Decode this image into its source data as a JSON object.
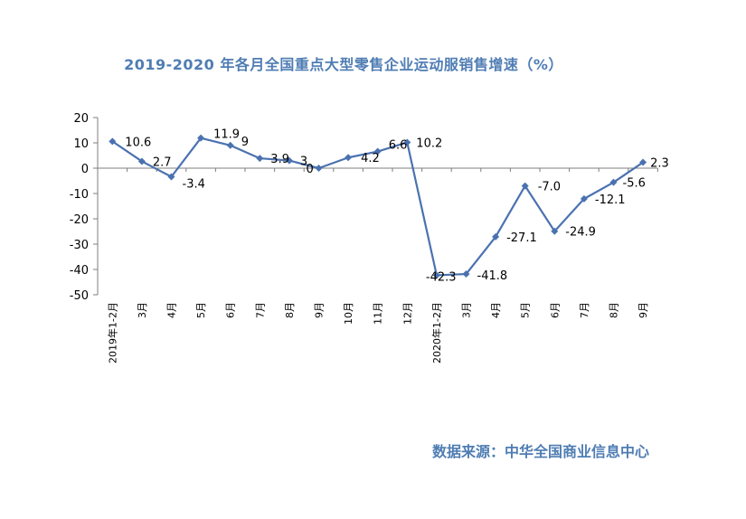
{
  "title": "2019-2020 年各月全国重点大型零售企业运动服销售增速（%）",
  "source": "数据来源：中华全国商业信息中心",
  "colors": {
    "series": "#4a72b0",
    "title": "#4f7db3",
    "axis": "#7f7f7f"
  },
  "chart_data": {
    "type": "line",
    "title": "2019-2020 年各月全国重点大型零售企业运动服销售增速（%）",
    "xlabel": "",
    "ylabel": "",
    "ylim": [
      -50,
      20
    ],
    "yticks": [
      20,
      10,
      0,
      -10,
      -20,
      -30,
      -40,
      -50
    ],
    "grid": false,
    "legend": "none",
    "categories": [
      "2019年1-2月",
      "3月",
      "4月",
      "5月",
      "6月",
      "7月",
      "8月",
      "9月",
      "10月",
      "11月",
      "12月",
      "2020年1-2月",
      "3月",
      "4月",
      "5月",
      "6月",
      "7月",
      "8月",
      "9月"
    ],
    "values": [
      10.6,
      2.7,
      -3.4,
      11.9,
      9,
      3.9,
      3,
      0,
      4.2,
      6.6,
      10.2,
      -42.3,
      -41.8,
      -27.1,
      -7.0,
      -24.9,
      -12.1,
      -5.6,
      2.3
    ],
    "data_labels": [
      "10.6",
      "2.7",
      "-3.4",
      "11.9",
      "9",
      "3.9",
      "3",
      "0",
      "4.2",
      "6.6",
      "10.2",
      "-42.3",
      "-41.8",
      "-27.1",
      "-7.0",
      "-24.9",
      "-12.1",
      "-5.6",
      "2.3"
    ]
  }
}
